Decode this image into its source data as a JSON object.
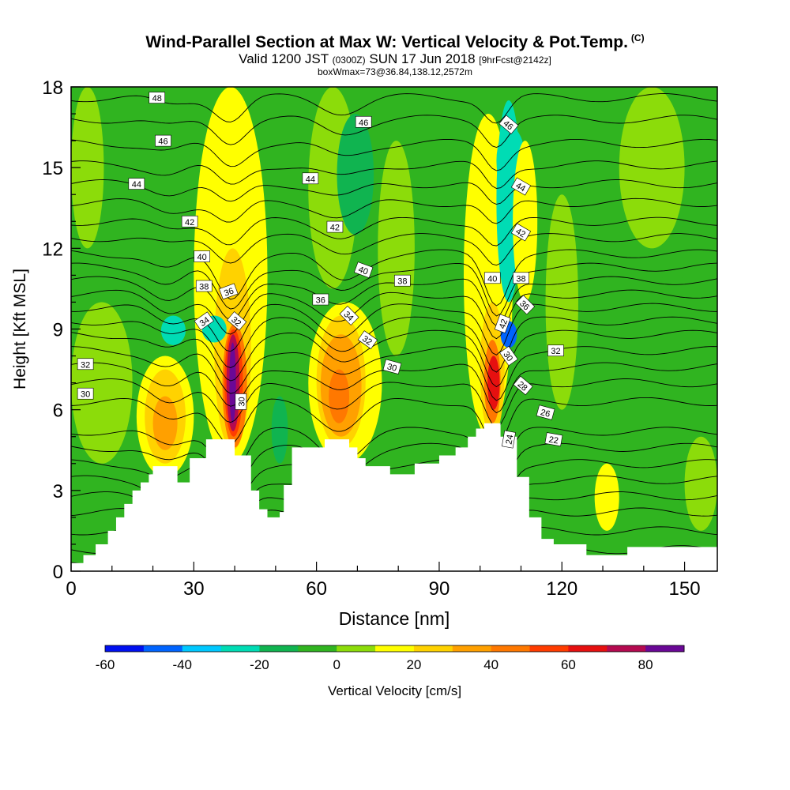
{
  "title": {
    "main": "Wind-Parallel Section at Max W: Vertical Velocity & Pot.Temp.",
    "copyright": "(C)",
    "valid_prefix": "Valid 1200 JST",
    "valid_utc": "(0300Z)",
    "valid_date": "SUN 17 Jun 2018",
    "forecast": "[9hrFcst@2142z]",
    "boxinfo": "boxWmax=73@36.84,138.12,2572m"
  },
  "chart_data": {
    "type": "heatmap",
    "xlabel": "Distance [nm]",
    "ylabel": "Height [Kft MSL]",
    "xlim": [
      0,
      158
    ],
    "ylim": [
      0,
      18
    ],
    "x_ticks": [
      0,
      30,
      60,
      90,
      120,
      150
    ],
    "x_tick_labels": [
      "0",
      "30",
      "60",
      "90",
      "120",
      "150"
    ],
    "y_ticks": [
      0,
      3,
      6,
      9,
      12,
      15,
      18
    ],
    "y_tick_labels": [
      "0",
      "3",
      "6",
      "9",
      "12",
      "15",
      "18"
    ],
    "background_color": "#30b420",
    "terrain_top": [
      [
        0,
        0.3
      ],
      [
        3,
        0.6
      ],
      [
        6,
        1.0
      ],
      [
        9,
        1.5
      ],
      [
        11,
        2.0
      ],
      [
        13,
        2.5
      ],
      [
        15,
        3.0
      ],
      [
        17,
        3.3
      ],
      [
        19,
        3.6
      ],
      [
        20,
        3.9
      ],
      [
        26,
        3.3
      ],
      [
        29,
        4.2
      ],
      [
        33,
        4.9
      ],
      [
        39,
        4.9
      ],
      [
        40,
        4.3
      ],
      [
        42,
        4.3
      ],
      [
        44,
        3.0
      ],
      [
        46,
        2.3
      ],
      [
        48,
        2.0
      ],
      [
        51,
        2.2
      ],
      [
        52,
        3.2
      ],
      [
        54,
        4.6
      ],
      [
        59,
        4.6
      ],
      [
        62,
        4.9
      ],
      [
        68,
        4.6
      ],
      [
        70,
        4.2
      ],
      [
        72,
        3.9
      ],
      [
        78,
        3.6
      ],
      [
        84,
        4.0
      ],
      [
        90,
        4.3
      ],
      [
        94,
        4.6
      ],
      [
        97,
        5.0
      ],
      [
        99,
        5.3
      ],
      [
        101,
        5.5
      ],
      [
        105,
        5.0
      ],
      [
        109,
        3.5
      ],
      [
        112,
        2.0
      ],
      [
        115,
        1.2
      ],
      [
        118,
        1.0
      ],
      [
        126,
        0.6
      ],
      [
        136,
        0.9
      ],
      [
        145,
        0.9
      ],
      [
        158,
        0.9
      ]
    ],
    "cells": [
      {
        "x": [
          0,
          15
        ],
        "y": [
          4.0,
          10.0
        ],
        "w": 5
      },
      {
        "x": [
          16,
          30
        ],
        "y": [
          3.5,
          8.0
        ],
        "w": 12
      },
      {
        "x": [
          18,
          28
        ],
        "y": [
          4.0,
          7.5
        ],
        "w": 22
      },
      {
        "x": [
          20,
          26
        ],
        "y": [
          4.5,
          6.5
        ],
        "w": 32
      },
      {
        "x": [
          30,
          48
        ],
        "y": [
          4.0,
          18.0
        ],
        "w": 10
      },
      {
        "x": [
          35,
          44
        ],
        "y": [
          4.5,
          12.0
        ],
        "w": 22
      },
      {
        "x": [
          37,
          43
        ],
        "y": [
          4.6,
          9.2
        ],
        "w": 40
      },
      {
        "x": [
          37.5,
          42
        ],
        "y": [
          5.0,
          9.0
        ],
        "w": 55
      },
      {
        "x": [
          38,
          41.2
        ],
        "y": [
          5.2,
          8.8
        ],
        "w": 70
      },
      {
        "x": [
          38.7,
          40.3
        ],
        "y": [
          5.5,
          8.5
        ],
        "w": 85
      },
      {
        "x": [
          32,
          38
        ],
        "y": [
          8.5,
          9.5
        ],
        "w": -25
      },
      {
        "x": [
          22,
          28
        ],
        "y": [
          8.4,
          9.5
        ],
        "w": -28
      },
      {
        "x": [
          48,
          56
        ],
        "y": [
          3.0,
          8.0
        ],
        "w": -10
      },
      {
        "x": [
          49,
          53
        ],
        "y": [
          4.0,
          6.5
        ],
        "w": -18
      },
      {
        "x": [
          58,
          76
        ],
        "y": [
          4.0,
          10.0
        ],
        "w": 12
      },
      {
        "x": [
          60,
          72
        ],
        "y": [
          4.6,
          9.5
        ],
        "w": 25
      },
      {
        "x": [
          61,
          71
        ],
        "y": [
          5.0,
          8.8
        ],
        "w": 35
      },
      {
        "x": [
          63,
          68
        ],
        "y": [
          5.5,
          7.5
        ],
        "w": 45
      },
      {
        "x": [
          58,
          70
        ],
        "y": [
          10.5,
          18.0
        ],
        "w": 5
      },
      {
        "x": [
          65,
          74
        ],
        "y": [
          12.5,
          17.0
        ],
        "w": -12
      },
      {
        "x": [
          75,
          84
        ],
        "y": [
          8.0,
          16.0
        ],
        "w": 5
      },
      {
        "x": [
          96,
          108
        ],
        "y": [
          5.0,
          17.0
        ],
        "w": 12
      },
      {
        "x": [
          100,
          106
        ],
        "y": [
          5.0,
          10.0
        ],
        "w": 25
      },
      {
        "x": [
          101,
          105
        ],
        "y": [
          5.5,
          8.6
        ],
        "w": 45
      },
      {
        "x": [
          101.8,
          104.8
        ],
        "y": [
          6.0,
          8.0
        ],
        "w": 60
      },
      {
        "x": [
          104,
          110
        ],
        "y": [
          10.0,
          17.5
        ],
        "w": -22
      },
      {
        "x": [
          105,
          109
        ],
        "y": [
          8.3,
          9.3
        ],
        "w": -50
      },
      {
        "x": [
          104,
          111
        ],
        "y": [
          14.0,
          16.5
        ],
        "w": -30
      },
      {
        "x": [
          108,
          114
        ],
        "y": [
          10.0,
          16.0
        ],
        "w": 18
      },
      {
        "x": [
          116,
          124
        ],
        "y": [
          6.0,
          14.0
        ],
        "w": 4
      },
      {
        "x": [
          128,
          134
        ],
        "y": [
          1.5,
          4.0
        ],
        "w": 18
      },
      {
        "x": [
          140,
          154
        ],
        "y": [
          8.0,
          11.0
        ],
        "w": -6
      },
      {
        "x": [
          150,
          158
        ],
        "y": [
          1.5,
          5.0
        ],
        "w": 6
      },
      {
        "x": [
          0,
          8
        ],
        "y": [
          12.0,
          18.0
        ],
        "w": 6
      },
      {
        "x": [
          12,
          22
        ],
        "y": [
          14.0,
          18.0
        ],
        "w": -8
      },
      {
        "x": [
          134,
          150
        ],
        "y": [
          12.0,
          18.0
        ],
        "w": 6
      },
      {
        "x": [
          84,
          96
        ],
        "y": [
          12.0,
          18.0
        ],
        "w": -6
      }
    ],
    "isentropes": {
      "levels": [
        21,
        22,
        23,
        24,
        25,
        26,
        27,
        28,
        29,
        30,
        31,
        32,
        33,
        34,
        35,
        36,
        37,
        38,
        39,
        40,
        41,
        42,
        43,
        44,
        45,
        46,
        47,
        48
      ],
      "base_heights": [
        {
          "level": 21,
          "h": 0.2
        },
        {
          "level": 22,
          "h": 0.8
        },
        {
          "level": 23,
          "h": 1.5
        },
        {
          "level": 24,
          "h": 2.2
        },
        {
          "level": 25,
          "h": 2.8
        },
        {
          "level": 26,
          "h": 3.4
        },
        {
          "level": 27,
          "h": 4.0
        },
        {
          "level": 28,
          "h": 4.6
        },
        {
          "level": 29,
          "h": 5.2
        },
        {
          "level": 30,
          "h": 6.3
        },
        {
          "level": 31,
          "h": 7.0
        },
        {
          "level": 32,
          "h": 7.6
        },
        {
          "level": 33,
          "h": 8.2
        },
        {
          "level": 34,
          "h": 8.8
        },
        {
          "level": 35,
          "h": 9.3
        },
        {
          "level": 36,
          "h": 9.8
        },
        {
          "level": 37,
          "h": 10.3
        },
        {
          "level": 38,
          "h": 10.8
        },
        {
          "level": 39,
          "h": 11.3
        },
        {
          "level": 40,
          "h": 11.8
        },
        {
          "level": 41,
          "h": 12.4
        },
        {
          "level": 42,
          "h": 13.0
        },
        {
          "level": 43,
          "h": 13.7
        },
        {
          "level": 44,
          "h": 14.4
        },
        {
          "level": 45,
          "h": 15.1
        },
        {
          "level": 46,
          "h": 15.9
        },
        {
          "level": 47,
          "h": 16.8
        },
        {
          "level": 48,
          "h": 17.6
        }
      ],
      "labels": [
        {
          "text": "48",
          "x": 21,
          "y": 17.6,
          "rot": 0
        },
        {
          "text": "46",
          "x": 22.5,
          "y": 16.0,
          "rot": 0
        },
        {
          "text": "44",
          "x": 16,
          "y": 14.4,
          "rot": 0
        },
        {
          "text": "42",
          "x": 29,
          "y": 13.0,
          "rot": 0
        },
        {
          "text": "40",
          "x": 32,
          "y": 11.7,
          "rot": 0
        },
        {
          "text": "38",
          "x": 32.5,
          "y": 10.6,
          "rot": 0
        },
        {
          "text": "36",
          "x": 38.5,
          "y": 10.4,
          "rot": -20
        },
        {
          "text": "34",
          "x": 32.5,
          "y": 9.3,
          "rot": -35
        },
        {
          "text": "32",
          "x": 40.5,
          "y": 9.3,
          "rot": 40
        },
        {
          "text": "32",
          "x": 3.5,
          "y": 7.7,
          "rot": 0
        },
        {
          "text": "30",
          "x": 3.5,
          "y": 6.6,
          "rot": 0
        },
        {
          "text": "30",
          "x": 41.5,
          "y": 6.3,
          "rot": -90
        },
        {
          "text": "46",
          "x": 71.5,
          "y": 16.7,
          "rot": 0
        },
        {
          "text": "44",
          "x": 58.5,
          "y": 14.6,
          "rot": 0
        },
        {
          "text": "42",
          "x": 64.5,
          "y": 12.8,
          "rot": 0
        },
        {
          "text": "40",
          "x": 71.5,
          "y": 11.2,
          "rot": 20
        },
        {
          "text": "38",
          "x": 81,
          "y": 10.8,
          "rot": 0
        },
        {
          "text": "36",
          "x": 61,
          "y": 10.1,
          "rot": 0
        },
        {
          "text": "34",
          "x": 68,
          "y": 9.5,
          "rot": 45
        },
        {
          "text": "32",
          "x": 72.5,
          "y": 8.6,
          "rot": 35
        },
        {
          "text": "30",
          "x": 78.5,
          "y": 7.6,
          "rot": 15
        },
        {
          "text": "46",
          "x": 107,
          "y": 16.6,
          "rot": 40
        },
        {
          "text": "44",
          "x": 110,
          "y": 14.3,
          "rot": 30
        },
        {
          "text": "42",
          "x": 110,
          "y": 12.6,
          "rot": 30
        },
        {
          "text": "40",
          "x": 103,
          "y": 10.9,
          "rot": 0
        },
        {
          "text": "38",
          "x": 110,
          "y": 10.9,
          "rot": 0
        },
        {
          "text": "36",
          "x": 111,
          "y": 9.9,
          "rot": 45
        },
        {
          "text": "42",
          "x": 105.5,
          "y": 9.2,
          "rot": -70
        },
        {
          "text": "30",
          "x": 107,
          "y": 8.0,
          "rot": 55
        },
        {
          "text": "28",
          "x": 110.5,
          "y": 6.9,
          "rot": 40
        },
        {
          "text": "26",
          "x": 116,
          "y": 5.9,
          "rot": 15
        },
        {
          "text": "24",
          "x": 107,
          "y": 4.9,
          "rot": -80
        },
        {
          "text": "22",
          "x": 118,
          "y": 4.9,
          "rot": 10
        },
        {
          "text": "32",
          "x": 118.5,
          "y": 8.2,
          "rot": 0
        }
      ]
    },
    "colorbar": {
      "label": "Vertical Velocity [cm/s]",
      "min": -60,
      "max": 90,
      "step": 10,
      "tick_values": [
        -60,
        -40,
        -20,
        0,
        20,
        40,
        60,
        80
      ],
      "tick_labels": [
        "-60",
        "-40",
        "-20",
        "0",
        "20",
        "40",
        "60",
        "80"
      ],
      "colors": [
        "#0010f0",
        "#0064ff",
        "#00c8ff",
        "#00dcb4",
        "#10b450",
        "#30b420",
        "#8cdc0a",
        "#ffff00",
        "#ffd200",
        "#ffa000",
        "#ff7800",
        "#ff3c00",
        "#e61010",
        "#b40a50",
        "#6a0896"
      ]
    }
  }
}
